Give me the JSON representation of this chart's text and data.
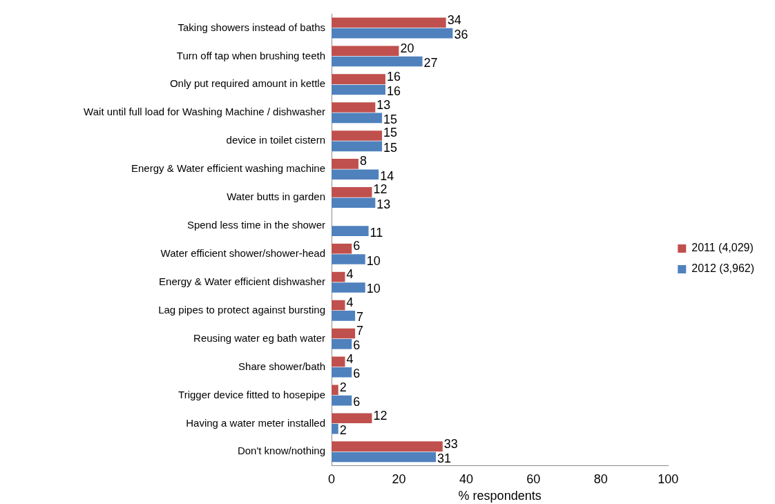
{
  "chart_data": {
    "type": "bar",
    "orientation": "horizontal",
    "xlabel": "% respondents",
    "categories": [
      "Taking showers instead of baths",
      "Turn off tap when brushing teeth",
      "Only put required amount in kettle",
      "Wait until full load for Washing Machine / dishwasher",
      "device in toilet cistern",
      "Energy & Water efficient washing machine",
      "Water butts in garden",
      "Spend less time in the shower",
      "Water efficient shower/shower-head",
      "Energy & Water efficient dishwasher",
      "Lag pipes to protect against bursting",
      "Reusing water eg bath water",
      "Share shower/bath",
      "Trigger device fitted to hosepipe",
      "Having a water meter installed",
      "Don't know/nothing"
    ],
    "series": [
      {
        "name": "2011 (4,029)",
        "color": "#c0504d",
        "values": [
          34,
          20,
          16,
          13,
          15,
          8,
          12,
          null,
          6,
          4,
          4,
          7,
          4,
          2,
          12,
          33
        ]
      },
      {
        "name": "2012 (3,962)",
        "color": "#4f81bd",
        "values": [
          36,
          27,
          16,
          15,
          15,
          14,
          13,
          11,
          10,
          10,
          7,
          6,
          6,
          6,
          2,
          31
        ]
      }
    ],
    "xlim": [
      0,
      100
    ],
    "xticks": [
      0,
      20,
      40,
      60,
      80,
      100
    ],
    "grid": false,
    "legend": "right",
    "data_labels": true
  }
}
